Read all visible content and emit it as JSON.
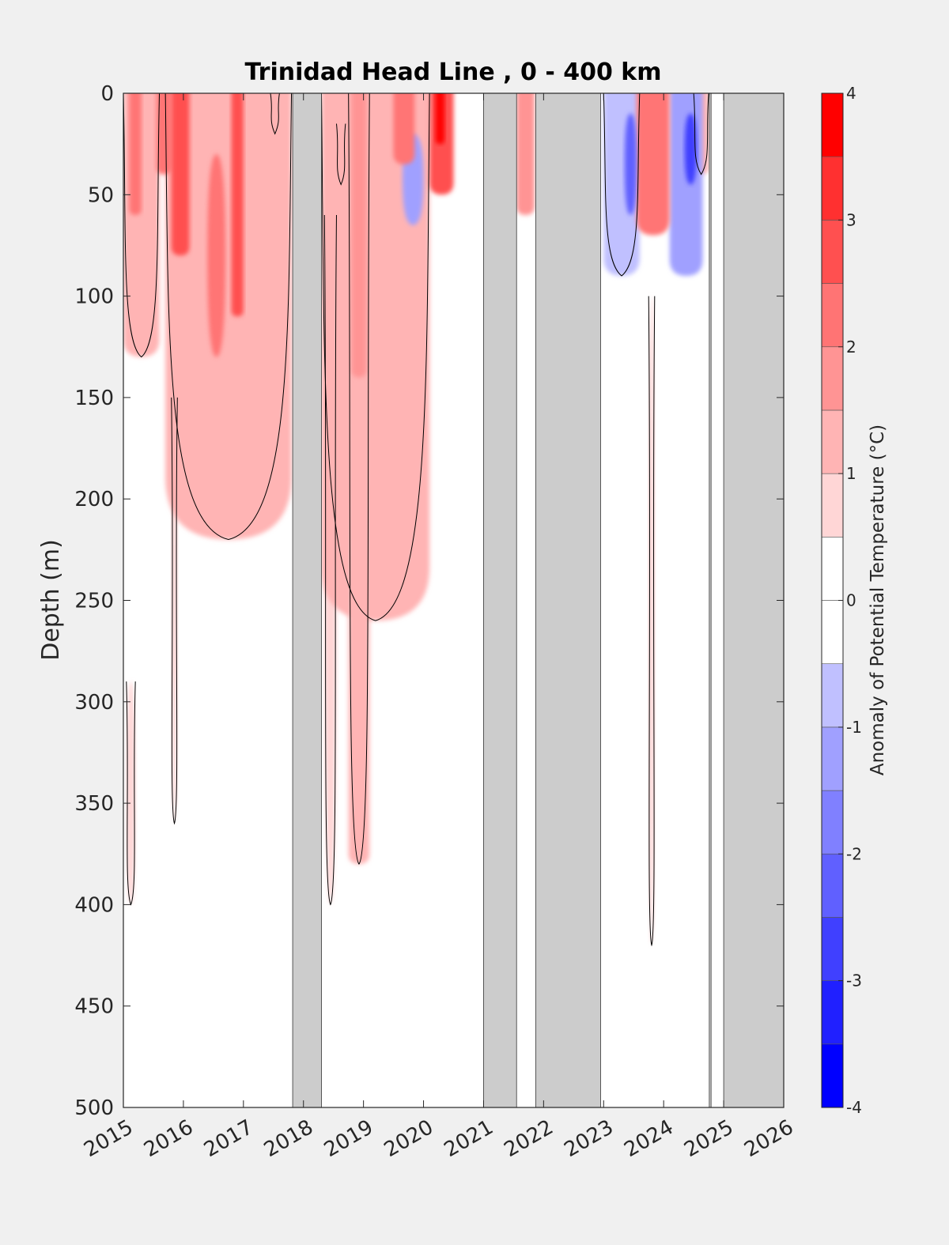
{
  "chart_data": {
    "type": "heatmap",
    "subtype": "filled-contour time-depth section",
    "title": "Trinidad Head Line , 0 - 400 km",
    "xlabel": "",
    "ylabel": "Depth (m)",
    "colorbar_label": "Anomaly of Potential Temperature (°C)",
    "x_ticks": [
      "2015",
      "2016",
      "2017",
      "2018",
      "2019",
      "2020",
      "2021",
      "2022",
      "2023",
      "2024",
      "2025",
      "2026"
    ],
    "x_range": [
      2015,
      2026
    ],
    "y_ticks": [
      "0",
      "50",
      "100",
      "150",
      "200",
      "250",
      "300",
      "350",
      "400",
      "450",
      "500"
    ],
    "y_range": [
      0,
      500
    ],
    "y_reversed": true,
    "colorbar_ticks": [
      "-4",
      "-3",
      "-2",
      "-1",
      "0",
      "1",
      "2",
      "3",
      "4"
    ],
    "colorbar_range": [
      -4,
      4
    ],
    "colorbar_step": 0.5,
    "colorbar_levels": [
      {
        "from": -4.0,
        "to": -3.5,
        "color": "#0000ff"
      },
      {
        "from": -3.5,
        "to": -3.0,
        "color": "#2020ff"
      },
      {
        "from": -3.0,
        "to": -2.5,
        "color": "#4040ff"
      },
      {
        "from": -2.5,
        "to": -2.0,
        "color": "#6060ff"
      },
      {
        "from": -2.0,
        "to": -1.5,
        "color": "#8080ff"
      },
      {
        "from": -1.5,
        "to": -1.0,
        "color": "#a0a0ff"
      },
      {
        "from": -1.0,
        "to": -0.5,
        "color": "#c0c0ff"
      },
      {
        "from": -0.5,
        "to": 0.0,
        "color": "#ffffff"
      },
      {
        "from": 0.0,
        "to": 0.5,
        "color": "#ffffff"
      },
      {
        "from": 0.5,
        "to": 1.0,
        "color": "#ffd6d6"
      },
      {
        "from": 1.0,
        "to": 1.5,
        "color": "#ffb4b4"
      },
      {
        "from": 1.5,
        "to": 2.0,
        "color": "#ff9494"
      },
      {
        "from": 2.0,
        "to": 2.5,
        "color": "#ff7474"
      },
      {
        "from": 2.5,
        "to": 3.0,
        "color": "#ff5050"
      },
      {
        "from": 3.0,
        "to": 3.5,
        "color": "#ff3030"
      },
      {
        "from": 3.5,
        "to": 4.0,
        "color": "#ff0000"
      }
    ],
    "colors": {
      "no_data": "#cccccc",
      "zero_contour": "#000000",
      "background": "#f0f0f0"
    },
    "no_data_periods": [
      [
        2017.82,
        2018.3
      ],
      [
        2021.0,
        2021.55
      ],
      [
        2021.87,
        2022.95
      ],
      [
        2024.76,
        2024.79
      ],
      [
        2025.0,
        2026.0
      ]
    ],
    "anomaly_features": [
      {
        "time": [
          2015.0,
          2015.6
        ],
        "depth": [
          0,
          130
        ],
        "anomaly": 1.0
      },
      {
        "time": [
          2015.1,
          2015.3
        ],
        "depth": [
          0,
          60
        ],
        "anomaly": 2.0
      },
      {
        "time": [
          2015.55,
          2015.8
        ],
        "depth": [
          0,
          40
        ],
        "anomaly": 2.0
      },
      {
        "time": [
          2015.8,
          2016.1
        ],
        "depth": [
          0,
          80
        ],
        "anomaly": 2.5
      },
      {
        "time": [
          2015.7,
          2017.8
        ],
        "depth": [
          0,
          220
        ],
        "anomaly": 1.0
      },
      {
        "time": [
          2016.4,
          2016.7
        ],
        "depth": [
          30,
          130
        ],
        "anomaly": 2.0
      },
      {
        "time": [
          2016.8,
          2017.0
        ],
        "depth": [
          0,
          110
        ],
        "anomaly": 2.5
      },
      {
        "time": [
          2015.8,
          2015.9
        ],
        "depth": [
          150,
          360
        ],
        "anomaly": 0.7
      },
      {
        "time": [
          2015.05,
          2015.2
        ],
        "depth": [
          290,
          400
        ],
        "anomaly": 0.7
      },
      {
        "time": [
          2017.45,
          2017.6
        ],
        "depth": [
          0,
          20
        ],
        "anomaly": -0.7
      },
      {
        "time": [
          2018.3,
          2020.1
        ],
        "depth": [
          0,
          260
        ],
        "anomaly": 1.0
      },
      {
        "time": [
          2018.35,
          2018.55
        ],
        "depth": [
          60,
          400
        ],
        "anomaly": 0.7
      },
      {
        "time": [
          2018.75,
          2019.1
        ],
        "depth": [
          0,
          380
        ],
        "anomaly": 1.0
      },
      {
        "time": [
          2018.8,
          2019.05
        ],
        "depth": [
          0,
          140
        ],
        "anomaly": 1.5
      },
      {
        "time": [
          2018.55,
          2018.7
        ],
        "depth": [
          15,
          45
        ],
        "anomaly": -0.8
      },
      {
        "time": [
          2019.5,
          2019.85
        ],
        "depth": [
          0,
          35
        ],
        "anomaly": 2.0
      },
      {
        "time": [
          2019.65,
          2020.0
        ],
        "depth": [
          20,
          65
        ],
        "anomaly": -1.2
      },
      {
        "time": [
          2020.1,
          2020.5
        ],
        "depth": [
          0,
          50
        ],
        "anomaly": 2.5
      },
      {
        "time": [
          2020.2,
          2020.35
        ],
        "depth": [
          0,
          25
        ],
        "anomaly": 3.5
      },
      {
        "time": [
          2021.55,
          2021.85
        ],
        "depth": [
          0,
          60
        ],
        "anomaly": 1.5
      },
      {
        "time": [
          2023.0,
          2023.6
        ],
        "depth": [
          0,
          90
        ],
        "anomaly": -1.0
      },
      {
        "time": [
          2023.35,
          2023.55
        ],
        "depth": [
          10,
          60
        ],
        "anomaly": -2.5
      },
      {
        "time": [
          2023.55,
          2024.1
        ],
        "depth": [
          0,
          70
        ],
        "anomaly": 2.0
      },
      {
        "time": [
          2023.75,
          2023.85
        ],
        "depth": [
          100,
          420
        ],
        "anomaly": 0.7
      },
      {
        "time": [
          2024.1,
          2024.65
        ],
        "depth": [
          0,
          90
        ],
        "anomaly": -1.2
      },
      {
        "time": [
          2024.35,
          2024.55
        ],
        "depth": [
          10,
          45
        ],
        "anomaly": -3.0
      },
      {
        "time": [
          2024.5,
          2024.75
        ],
        "depth": [
          0,
          40
        ],
        "anomaly": 1.0
      }
    ]
  }
}
